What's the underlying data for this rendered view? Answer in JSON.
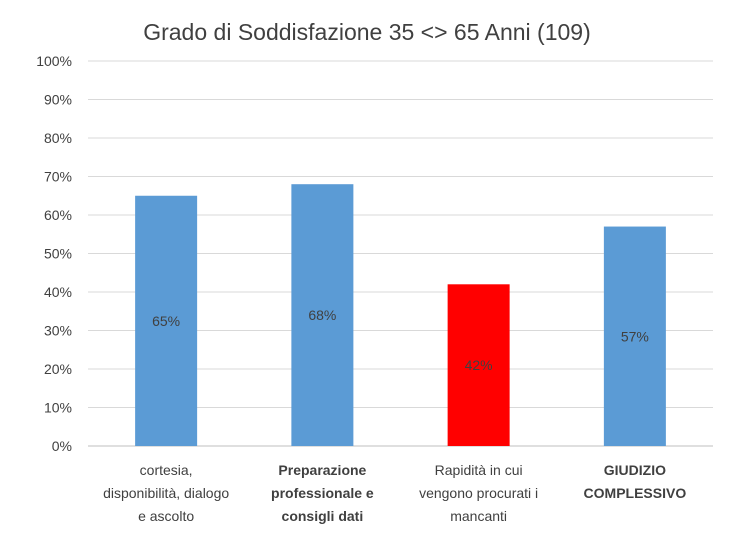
{
  "chart_data": {
    "type": "bar",
    "title": "Grado di Soddisfazione 35 <> 65 Anni (109)",
    "categories": [
      {
        "lines": [
          "cortesia,",
          "disponibilità, dialogo",
          "e ascolto"
        ],
        "bold": false
      },
      {
        "lines": [
          "Preparazione",
          "professionale e",
          "consigli dati"
        ],
        "bold": true
      },
      {
        "lines": [
          "Rapidità in cui",
          "vengono procurati i",
          "mancanti"
        ],
        "bold": false
      },
      {
        "lines": [
          "GIUDIZIO",
          "COMPLESSIVO"
        ],
        "bold": true
      }
    ],
    "values": [
      65,
      68,
      42,
      57
    ],
    "data_labels": [
      "65%",
      "68%",
      "42%",
      "57%"
    ],
    "bar_colors": [
      "#5b9bd5",
      "#5b9bd5",
      "#ff0000",
      "#5b9bd5"
    ],
    "ylim": [
      0,
      100
    ],
    "y_ticks": [
      "0%",
      "10%",
      "20%",
      "30%",
      "40%",
      "50%",
      "60%",
      "70%",
      "80%",
      "90%",
      "100%"
    ],
    "xlabel": "",
    "ylabel": "",
    "grid": true,
    "legend": "none"
  }
}
